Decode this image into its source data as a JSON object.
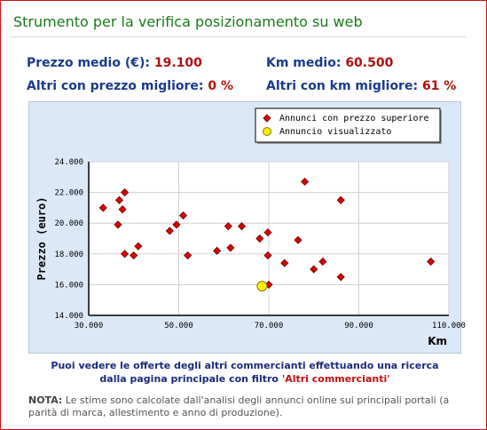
{
  "title": "Strumento per la verifica posizionamento su web",
  "stats": {
    "avg_price_label": "Prezzo medio (€):",
    "avg_price_value": "19.100",
    "avg_km_label": "Km medio:",
    "avg_km_value": "60.500",
    "better_price_label": "Altri con prezzo migliore:",
    "better_price_value": "0 %",
    "better_km_label": "Altri con km migliore:",
    "better_km_value": "61 %"
  },
  "colors": {
    "title": "#1a7a1a",
    "label": "#1a3a8c",
    "value": "#b01010",
    "chart_bg": "#dbe8f7",
    "point_other": "#dd0000",
    "point_current": "#ffee00"
  },
  "chart_data": {
    "type": "scatter",
    "title": "",
    "xlabel": "Km",
    "ylabel": "Prezzo (euro)",
    "xlim": [
      30000,
      110000
    ],
    "ylim": [
      14000,
      24000
    ],
    "x_ticks": [
      30000,
      50000,
      70000,
      90000,
      110000
    ],
    "x_tick_labels": [
      "30.000",
      "50.000",
      "70.000",
      "90.000",
      "110.000"
    ],
    "y_ticks": [
      14000,
      16000,
      18000,
      20000,
      22000,
      24000
    ],
    "y_tick_labels": [
      "14.000",
      "16.000",
      "18.000",
      "20.000",
      "22.000",
      "24.000"
    ],
    "legend_position": "top-right",
    "series": [
      {
        "name": "Annunci con prezzo superiore",
        "color": "#dd0000",
        "points": [
          [
            33200,
            21000
          ],
          [
            36800,
            21500
          ],
          [
            38000,
            22000
          ],
          [
            37500,
            20900
          ],
          [
            36500,
            19900
          ],
          [
            38000,
            18000
          ],
          [
            40000,
            17900
          ],
          [
            41000,
            18500
          ],
          [
            48000,
            19500
          ],
          [
            49500,
            19900
          ],
          [
            51000,
            20500
          ],
          [
            52000,
            17900
          ],
          [
            58500,
            18200
          ],
          [
            61000,
            19800
          ],
          [
            61500,
            18400
          ],
          [
            64000,
            19800
          ],
          [
            68000,
            19000
          ],
          [
            69800,
            19400
          ],
          [
            69800,
            17900
          ],
          [
            70000,
            16000
          ],
          [
            73500,
            17400
          ],
          [
            76500,
            18900
          ],
          [
            78000,
            22700
          ],
          [
            80000,
            17000
          ],
          [
            82000,
            17500
          ],
          [
            86000,
            21500
          ],
          [
            86000,
            16500
          ],
          [
            106000,
            17500
          ]
        ]
      },
      {
        "name": "Annuncio visualizzato",
        "color": "#ffee00",
        "points": [
          [
            68500,
            15900
          ]
        ]
      }
    ]
  },
  "footer": {
    "info_line1": "Puoi vedere le offerte degli altri commercianti effettuando una ricerca",
    "info_line2": "dalla pagina principale con filtro",
    "info_link": "'Altri commercianti'",
    "note_label": "NOTA:",
    "note_text": "Le stime sono calcolate dall'analisi degli annunci online sui principali portali (a parità di marca, allestimento e anno di produzione)."
  }
}
